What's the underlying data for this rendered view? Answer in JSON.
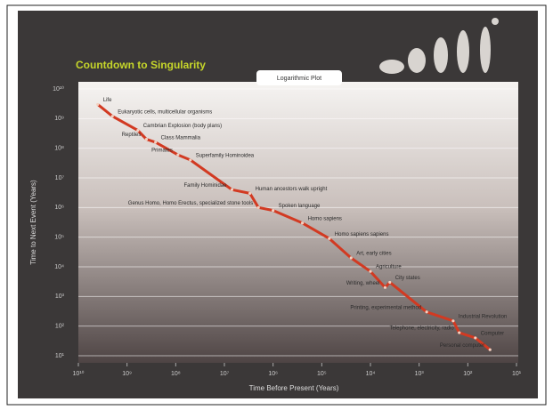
{
  "chart_data": {
    "type": "line",
    "title": "Countdown to Singularity",
    "subtitle": "Logarithmic Plot",
    "xlabel": "Time Before Present (Years)",
    "ylabel": "Time to Next Event (Years)",
    "xscale": "log",
    "yscale": "log",
    "xlim": [
      10000000000,
      10
    ],
    "ylim": [
      10,
      10000000000
    ],
    "xticks": [
      {
        "value": 10000000000,
        "label": "10¹⁰"
      },
      {
        "value": 1000000000,
        "label": "10⁹"
      },
      {
        "value": 100000000,
        "label": "10⁸"
      },
      {
        "value": 10000000,
        "label": "10⁷"
      },
      {
        "value": 1000000,
        "label": "10⁶"
      },
      {
        "value": 100000,
        "label": "10⁵"
      },
      {
        "value": 10000,
        "label": "10⁴"
      },
      {
        "value": 1000,
        "label": "10³"
      },
      {
        "value": 100,
        "label": "10²"
      },
      {
        "value": 10,
        "label": "10¹"
      }
    ],
    "yticks": [
      {
        "value": 10000000000,
        "label": "10¹⁰"
      },
      {
        "value": 1000000000,
        "label": "10⁹"
      },
      {
        "value": 100000000,
        "label": "10⁸"
      },
      {
        "value": 10000000,
        "label": "10⁷"
      },
      {
        "value": 1000000,
        "label": "10⁶"
      },
      {
        "value": 100000,
        "label": "10⁵"
      },
      {
        "value": 10000,
        "label": "10⁴"
      },
      {
        "value": 1000,
        "label": "10³"
      },
      {
        "value": 100,
        "label": "10²"
      },
      {
        "value": 10,
        "label": "10¹"
      }
    ],
    "grid": true,
    "color": "#d23a22",
    "x": [
      4000000000,
      2000000000,
      600000000,
      400000000,
      260000000,
      90000000,
      50000000,
      7000000,
      3000000,
      2000000,
      1000000,
      250000,
      70000,
      25000,
      10000,
      5000,
      4000,
      700,
      200,
      150,
      70,
      35
    ],
    "values": [
      3000000000,
      1200000000,
      400000000,
      200000000,
      160000000,
      60000000,
      40000000,
      4000000,
      3000000,
      1000000,
      800000,
      300000,
      90000,
      20000,
      7000,
      2000,
      3000,
      300,
      150,
      60,
      40,
      16
    ],
    "point_labels": [
      "Life",
      "Eukaryotic cells, multicellular organisms",
      "Cambrian Explosion (body plans)",
      "Reptiles",
      "Class Mammalia",
      "Primates",
      "Superfamily Hominoidea",
      "Family Hominidae",
      "Human ancestors walk upright",
      "Genus Homo, Homo Erectus, specialized stone tools",
      "Spoken language",
      "Homo sapiens",
      "Homo sapiens sapiens",
      "Art, early cities",
      "Agriculture",
      "Writing, wheel",
      "City states",
      "Printing, experimental method",
      "Industrial Revolution",
      "Telephone, electricity, radio",
      "Computer",
      "Personal computer"
    ]
  }
}
